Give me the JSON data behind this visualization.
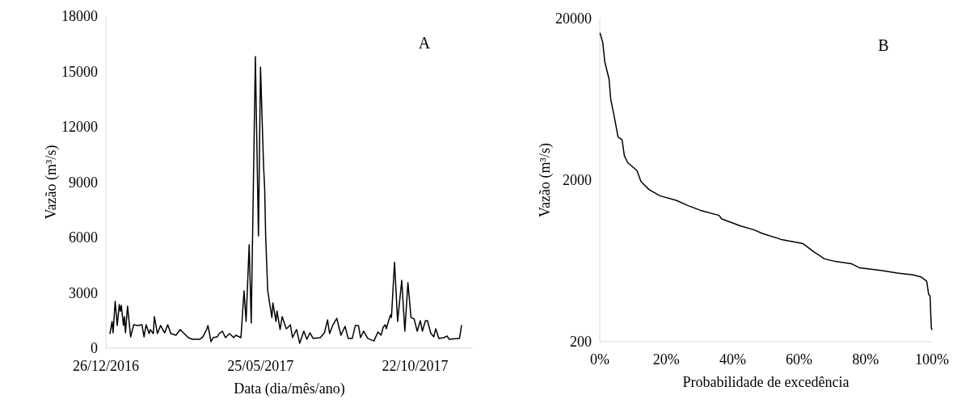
{
  "chart_data": [
    {
      "type": "line",
      "xlabel": "Data (dia/mês/ano)",
      "ylabel": "Vazão (m³/s)",
      "annotations": [
        "A"
      ],
      "xlim": [
        "2016-12-26",
        "2017-12-17"
      ],
      "xticks": [
        {
          "value": "2016-12-26",
          "label": "26/12/2016"
        },
        {
          "value": "2017-05-25",
          "label": "25/05/2017"
        },
        {
          "value": "2017-10-22",
          "label": "22/10/2017"
        }
      ],
      "ylim": [
        0,
        18000
      ],
      "yticks": [
        0,
        3000,
        6000,
        9000,
        12000,
        15000,
        18000
      ],
      "x": [
        "2016-12-30",
        "2017-01-01",
        "2017-01-02",
        "2017-01-04",
        "2017-01-06",
        "2017-01-08",
        "2017-01-09",
        "2017-01-10",
        "2017-01-12",
        "2017-01-13",
        "2017-01-14",
        "2017-01-16",
        "2017-01-19",
        "2017-01-22",
        "2017-01-26",
        "2017-01-30",
        "2017-02-01",
        "2017-02-03",
        "2017-02-06",
        "2017-02-07",
        "2017-02-10",
        "2017-02-11",
        "2017-02-14",
        "2017-02-17",
        "2017-02-21",
        "2017-02-24",
        "2017-02-27",
        "2017-03-04",
        "2017-03-08",
        "2017-03-12",
        "2017-03-16",
        "2017-03-20",
        "2017-03-27",
        "2017-03-30",
        "2017-04-03",
        "2017-04-04",
        "2017-04-07",
        "2017-04-09",
        "2017-04-13",
        "2017-04-15",
        "2017-04-18",
        "2017-04-21",
        "2017-04-25",
        "2017-04-29",
        "2017-05-01",
        "2017-05-06",
        "2017-05-09",
        "2017-05-11",
        "2017-05-14",
        "2017-05-16",
        "2017-05-20",
        "2017-05-23",
        "2017-05-25",
        "2017-05-28",
        "2017-05-29",
        "2017-05-30",
        "2017-06-01",
        "2017-06-05",
        "2017-06-06",
        "2017-06-09",
        "2017-06-10",
        "2017-06-13",
        "2017-06-15",
        "2017-06-19",
        "2017-06-21",
        "2017-06-23",
        "2017-06-25",
        "2017-06-29",
        "2017-07-02",
        "2017-07-06",
        "2017-07-09",
        "2017-07-12",
        "2017-07-15",
        "2017-07-22",
        "2017-07-26",
        "2017-07-29",
        "2017-07-31",
        "2017-08-03",
        "2017-08-07",
        "2017-08-11",
        "2017-08-15",
        "2017-08-18",
        "2017-08-22",
        "2017-08-25",
        "2017-08-28",
        "2017-08-30",
        "2017-09-02",
        "2017-09-06",
        "2017-09-12",
        "2017-09-16",
        "2017-09-19",
        "2017-09-21",
        "2017-09-23",
        "2017-09-24",
        "2017-09-28",
        "2017-09-29",
        "2017-10-02",
        "2017-10-05",
        "2017-10-09",
        "2017-10-12",
        "2017-10-15",
        "2017-10-18",
        "2017-10-21",
        "2017-10-24",
        "2017-10-27",
        "2017-10-29",
        "2017-11-01",
        "2017-11-03",
        "2017-11-06",
        "2017-11-09",
        "2017-11-11",
        "2017-11-14",
        "2017-11-19",
        "2017-11-22",
        "2017-11-24",
        "2017-12-03",
        "2017-12-04",
        "2017-12-06"
      ],
      "series": [
        {
          "color": "#000000",
          "values": [
            790,
            1450,
            830,
            2540,
            1230,
            2370,
            2000,
            2320,
            1230,
            1710,
            830,
            2280,
            610,
            1270,
            1230,
            1270,
            610,
            1270,
            790,
            1010,
            790,
            1710,
            790,
            1230,
            830,
            1270,
            790,
            700,
            1010,
            790,
            570,
            480,
            480,
            610,
            1050,
            1230,
            350,
            570,
            610,
            790,
            920,
            570,
            790,
            570,
            700,
            570,
            3110,
            1450,
            5610,
            1360,
            15810,
            6090,
            15240,
            9810,
            8720,
            6040,
            3110,
            1660,
            2450,
            1450,
            2010,
            1010,
            1710,
            1050,
            1140,
            1270,
            570,
            1010,
            260,
            920,
            480,
            830,
            530,
            570,
            830,
            1530,
            790,
            1230,
            1620,
            700,
            1180,
            530,
            530,
            1230,
            1230,
            570,
            920,
            530,
            390,
            880,
            700,
            1140,
            1270,
            1050,
            1800,
            1660,
            4650,
            1450,
            3680,
            920,
            3550,
            1660,
            1580,
            920,
            1490,
            920,
            1490,
            1490,
            830,
            610,
            1050,
            530,
            570,
            660,
            480,
            530,
            530,
            1230
          ]
        }
      ]
    },
    {
      "type": "line",
      "xlabel": "Probabilidade de excedência",
      "ylabel": "Vazão (m³/s)",
      "annotations": [
        "B"
      ],
      "log": "y",
      "xlim": [
        0,
        100
      ],
      "xticks": [
        {
          "value": 0,
          "label": "0%"
        },
        {
          "value": 20,
          "label": "20%"
        },
        {
          "value": 40,
          "label": "40%"
        },
        {
          "value": 60,
          "label": "60%"
        },
        {
          "value": 80,
          "label": "80%"
        },
        {
          "value": 100,
          "label": "100%"
        }
      ],
      "ylim": [
        200,
        20000
      ],
      "yticks": [
        200,
        2000,
        20000
      ],
      "x": [
        0.1,
        0.9,
        1.5,
        2.8,
        3.3,
        4.3,
        5.5,
        6.7,
        7.4,
        8.4,
        11.2,
        12.4,
        14.8,
        18.1,
        23,
        26.6,
        30.3,
        35.9,
        36.7,
        42.4,
        46.5,
        48.9,
        54.6,
        61.1,
        64.3,
        67.6,
        70.8,
        75.7,
        78.1,
        84.6,
        89.5,
        94.3,
        96.8,
        98.4,
        99,
        99.4,
        99.8,
        100
      ],
      "series": [
        {
          "color": "#000000",
          "values": [
            16200,
            14200,
            10800,
            8430,
            6320,
            5020,
            3700,
            3560,
            2830,
            2570,
            2290,
            1960,
            1750,
            1600,
            1500,
            1390,
            1300,
            1210,
            1150,
            1040,
            984,
            936,
            859,
            811,
            723,
            652,
            628,
            608,
            574,
            553,
            532,
            518,
            502,
            474,
            392,
            384,
            242,
            238
          ]
        }
      ]
    }
  ]
}
